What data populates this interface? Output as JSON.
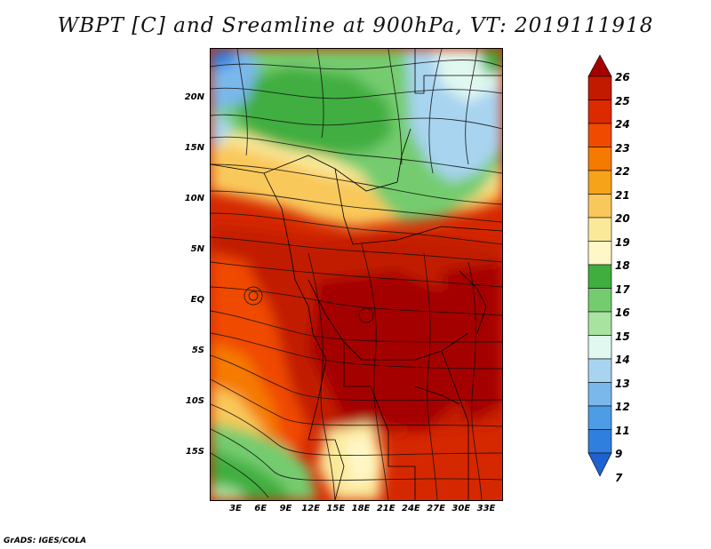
{
  "title": "WBPT [C] and Sreamline at 900hPa, VT: 2019111918",
  "credit": "GrADS: IGES/COLA",
  "map": {
    "lat_labels": [
      "20N",
      "15N",
      "10N",
      "5N",
      "EQ",
      "5S",
      "10S",
      "15S"
    ],
    "lon_labels": [
      "3E",
      "6E",
      "9E",
      "12E",
      "15E",
      "18E",
      "21E",
      "24E",
      "27E",
      "30E",
      "33E"
    ]
  },
  "colorbar": {
    "levels": [
      "26",
      "25",
      "24",
      "23",
      "22",
      "21",
      "20",
      "19",
      "18",
      "17",
      "16",
      "15",
      "14",
      "13",
      "12",
      "11",
      "9",
      "7"
    ],
    "colors": [
      "#a50000",
      "#c21a00",
      "#dc2a00",
      "#f04a00",
      "#f57a00",
      "#f7a31a",
      "#f9c85a",
      "#fbe99a",
      "#fff7c8",
      "#3fae3f",
      "#74cc6e",
      "#a8e4a0",
      "#e0f8f0",
      "#a8d4f0",
      "#7ab8ec",
      "#4e9ce6",
      "#2f80de",
      "#1d62cf"
    ]
  }
}
